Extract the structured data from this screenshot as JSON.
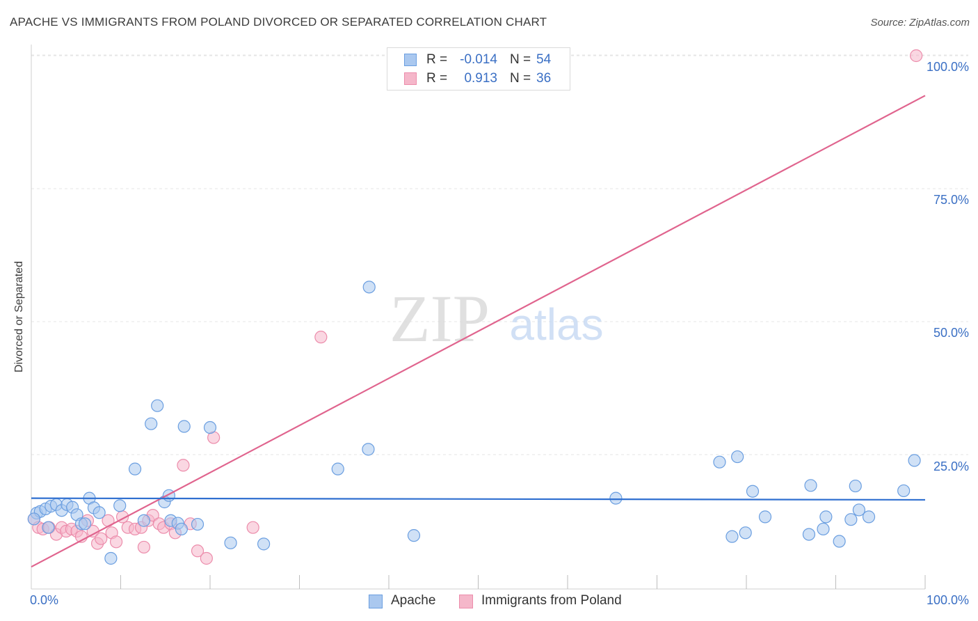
{
  "header": {
    "title": "APACHE VS IMMIGRANTS FROM POLAND DIVORCED OR SEPARATED CORRELATION CHART",
    "source": "Source: ZipAtlas.com"
  },
  "watermark": {
    "zip": "ZIP",
    "atlas": "atlas"
  },
  "legend_top": {
    "rows": [
      {
        "r_label": "R =",
        "r_value": "-0.014",
        "n_label": "N =",
        "n_value": "54",
        "color": "#aac8ef"
      },
      {
        "r_label": "R =",
        "r_value": "0.913",
        "n_label": "N =",
        "n_value": "36",
        "color": "#f5b7ca"
      }
    ]
  },
  "legend_bottom": {
    "items": [
      {
        "label": "Apache"
      },
      {
        "label": "Immigrants from Poland"
      }
    ]
  },
  "colors": {
    "apache_fill": "#aac8ef",
    "apache_stroke": "#6a9ee0",
    "apache_line": "#2f6fd0",
    "poland_fill": "#f5b7ca",
    "poland_stroke": "#ec8cab",
    "poland_line": "#e0648e",
    "tick_text": "#3a6fc4",
    "grid": "#e4e4e4"
  },
  "chart_data": {
    "type": "scatter",
    "title": "APACHE VS IMMIGRANTS FROM POLAND DIVORCED OR SEPARATED CORRELATION CHART",
    "xlabel": "",
    "ylabel": "Divorced or Separated",
    "xlim": [
      0,
      100
    ],
    "ylim": [
      0,
      105
    ],
    "x_tick_labels": [
      "0.0%",
      "100.0%"
    ],
    "y_ticks": [
      25,
      50,
      75,
      100
    ],
    "y_tick_labels": [
      "25.0%",
      "50.0%",
      "75.0%",
      "100.0%"
    ],
    "grid": true,
    "legend_position": "top-center",
    "series": [
      {
        "name": "Apache",
        "r": -0.014,
        "n": 54,
        "trend": {
          "x": [
            0,
            100
          ],
          "y": [
            16.8,
            16.5
          ]
        },
        "points": [
          [
            0.6,
            14.0
          ],
          [
            1.0,
            14.3
          ],
          [
            1.6,
            14.8
          ],
          [
            2.2,
            15.3
          ],
          [
            2.8,
            15.6
          ],
          [
            3.4,
            14.5
          ],
          [
            4.0,
            15.6
          ],
          [
            4.6,
            15.1
          ],
          [
            5.1,
            13.7
          ],
          [
            5.6,
            12.0
          ],
          [
            6.5,
            16.8
          ],
          [
            7.0,
            15.0
          ],
          [
            7.6,
            14.1
          ],
          [
            8.9,
            5.5
          ],
          [
            9.9,
            15.4
          ],
          [
            11.6,
            22.3
          ],
          [
            12.6,
            12.6
          ],
          [
            13.4,
            30.8
          ],
          [
            14.1,
            34.2
          ],
          [
            14.9,
            16.1
          ],
          [
            15.4,
            17.3
          ],
          [
            15.6,
            12.6
          ],
          [
            16.4,
            12.1
          ],
          [
            16.8,
            11.0
          ],
          [
            17.1,
            30.3
          ],
          [
            18.6,
            11.9
          ],
          [
            20.0,
            30.1
          ],
          [
            22.3,
            8.4
          ],
          [
            26.0,
            8.2
          ],
          [
            34.3,
            22.3
          ],
          [
            37.7,
            26.0
          ],
          [
            37.8,
            56.5
          ],
          [
            42.8,
            9.8
          ],
          [
            65.4,
            16.8
          ],
          [
            77.0,
            23.6
          ],
          [
            78.4,
            9.6
          ],
          [
            79.0,
            24.6
          ],
          [
            79.9,
            10.3
          ],
          [
            80.7,
            18.1
          ],
          [
            82.1,
            13.3
          ],
          [
            87.0,
            10.0
          ],
          [
            87.2,
            19.2
          ],
          [
            88.6,
            11.0
          ],
          [
            88.9,
            13.3
          ],
          [
            90.4,
            8.7
          ],
          [
            91.7,
            12.8
          ],
          [
            92.2,
            19.1
          ],
          [
            92.6,
            14.6
          ],
          [
            93.7,
            13.3
          ],
          [
            97.6,
            18.2
          ],
          [
            98.8,
            23.9
          ],
          [
            0.3,
            12.9
          ],
          [
            1.9,
            11.3
          ],
          [
            6.0,
            12.0
          ]
        ]
      },
      {
        "name": "Immigrants from Poland",
        "r": 0.913,
        "n": 36,
        "trend": {
          "x": [
            0,
            100
          ],
          "y": [
            3.9,
            92.5
          ]
        },
        "points": [
          [
            0.3,
            12.9
          ],
          [
            0.8,
            11.3
          ],
          [
            1.3,
            11.0
          ],
          [
            2.0,
            11.3
          ],
          [
            2.8,
            10.0
          ],
          [
            3.4,
            11.3
          ],
          [
            3.9,
            10.6
          ],
          [
            4.5,
            11.0
          ],
          [
            5.1,
            10.6
          ],
          [
            5.6,
            9.6
          ],
          [
            6.3,
            12.6
          ],
          [
            6.9,
            10.6
          ],
          [
            7.4,
            8.3
          ],
          [
            7.8,
            9.2
          ],
          [
            8.6,
            12.6
          ],
          [
            9.0,
            10.3
          ],
          [
            9.5,
            8.6
          ],
          [
            10.2,
            13.3
          ],
          [
            10.8,
            11.3
          ],
          [
            11.6,
            11.0
          ],
          [
            12.3,
            11.3
          ],
          [
            12.6,
            7.6
          ],
          [
            13.1,
            12.6
          ],
          [
            13.6,
            13.6
          ],
          [
            14.3,
            12.0
          ],
          [
            14.8,
            11.3
          ],
          [
            15.6,
            12.0
          ],
          [
            16.1,
            10.3
          ],
          [
            17.0,
            23.0
          ],
          [
            17.8,
            12.0
          ],
          [
            18.6,
            6.9
          ],
          [
            19.6,
            5.5
          ],
          [
            20.4,
            28.2
          ],
          [
            24.8,
            11.3
          ],
          [
            32.4,
            47.1
          ],
          [
            99.0,
            100.0
          ]
        ]
      }
    ]
  }
}
